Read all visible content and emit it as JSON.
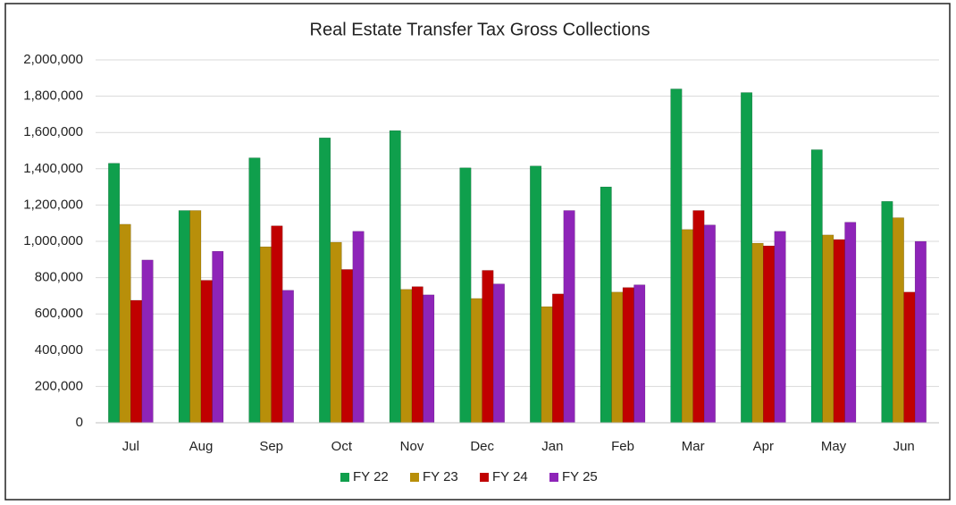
{
  "chart_data": {
    "type": "bar",
    "title": "Real Estate Transfer Tax Gross Collections",
    "categories": [
      "Jul",
      "Aug",
      "Sep",
      "Oct",
      "Nov",
      "Dec",
      "Jan",
      "Feb",
      "Mar",
      "Apr",
      "May",
      "Jun"
    ],
    "series": [
      {
        "name": "FY 22",
        "color": "#0f9f4c",
        "values": [
          1430000,
          1170000,
          1460000,
          1570000,
          1610000,
          1405000,
          1415000,
          1300000,
          1840000,
          1820000,
          1505000,
          1220000
        ]
      },
      {
        "name": "FY 23",
        "color": "#b88f0a",
        "values": [
          1094000,
          1170000,
          970000,
          995000,
          735000,
          685000,
          640000,
          720000,
          1065000,
          990000,
          1035000,
          1130000
        ]
      },
      {
        "name": "FY 24",
        "color": "#c00000",
        "values": [
          675000,
          785000,
          1085000,
          845000,
          750000,
          840000,
          710000,
          745000,
          1170000,
          975000,
          1010000,
          720000
        ]
      },
      {
        "name": "FY 25",
        "color": "#8e24b8",
        "values": [
          897000,
          945000,
          730000,
          1055000,
          705000,
          765000,
          1170000,
          760000,
          1090000,
          1055000,
          1105000,
          1000000
        ]
      }
    ],
    "ylim": [
      0,
      2000000
    ],
    "yticks": [
      0,
      {
        "value": 200000,
        "label": "200,000"
      },
      {
        "value": 400000,
        "label": "400,000"
      },
      {
        "value": 600000,
        "label": "600,000"
      },
      {
        "value": 800000,
        "label": "800,000"
      },
      {
        "value": 1000000,
        "label": "1,000,000"
      },
      {
        "value": 1200000,
        "label": "1,200,000"
      },
      {
        "value": 1400000,
        "label": "1,400,000"
      },
      {
        "value": 1600000,
        "label": "1,600,000"
      },
      {
        "value": 1800000,
        "label": "1,800,000"
      },
      {
        "value": 2000000,
        "label": "2,000,000"
      }
    ],
    "grid": true,
    "legend": "bottom"
  }
}
